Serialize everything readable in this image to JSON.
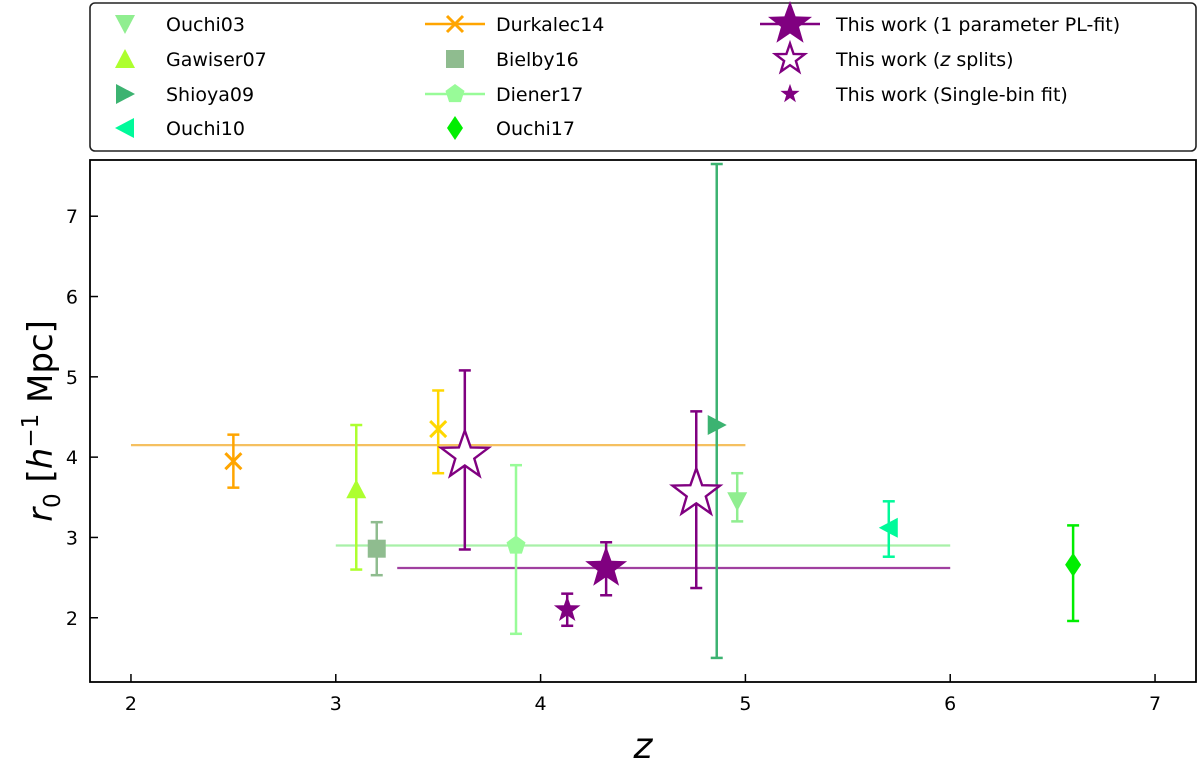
{
  "chart_data": {
    "type": "scatter",
    "title": "",
    "xlabel": "z",
    "ylabel_parts": {
      "r": "r",
      "sub": "0",
      "open": " [",
      "h": "h",
      "sup": "−1",
      "mpc": " Mpc]"
    },
    "xlim": [
      1.8,
      7.2
    ],
    "ylim": [
      1.2,
      7.7
    ],
    "x_ticks": [
      2,
      3,
      4,
      5,
      6,
      7
    ],
    "y_ticks": [
      2,
      3,
      4,
      5,
      6,
      7
    ],
    "legend": {
      "position": "top",
      "entries": [
        {
          "key": "ouchi03",
          "label": "Ouchi03"
        },
        {
          "key": "gawiser07",
          "label": "Gawiser07"
        },
        {
          "key": "shioya09",
          "label": "Shioya09"
        },
        {
          "key": "ouchi10",
          "label": "Ouchi10"
        },
        {
          "key": "durkalec14",
          "label": "Durkalec14"
        },
        {
          "key": "bielby16",
          "label": "Bielby16"
        },
        {
          "key": "diener17",
          "label": "Diener17"
        },
        {
          "key": "ouchi17",
          "label": "Ouchi17"
        },
        {
          "key": "pl_fit",
          "label_pre": "This work (1 parameter PL-fit)",
          "label_z": "",
          "label_post": ""
        },
        {
          "key": "z_splits",
          "label_pre": "This work (",
          "label_z": "z",
          "label_post": " splits)"
        },
        {
          "key": "single_bin",
          "label_pre": "This work (Single-bin fit)",
          "label_z": "",
          "label_post": ""
        }
      ]
    },
    "series": [
      {
        "key": "ouchi03",
        "name": "Ouchi03",
        "marker": "triangle-down",
        "color": "#90ee90",
        "points": [
          {
            "x": 4.96,
            "y": 3.45,
            "ylo": 3.2,
            "yhi": 3.8
          }
        ]
      },
      {
        "key": "gawiser07",
        "name": "Gawiser07",
        "marker": "triangle-up",
        "color": "#adff2f",
        "points": [
          {
            "x": 3.1,
            "y": 3.6,
            "ylo": 2.6,
            "yhi": 4.4
          }
        ]
      },
      {
        "key": "shioya09",
        "name": "Shioya09",
        "marker": "triangle-right",
        "color": "#3cb371",
        "points": [
          {
            "x": 4.86,
            "y": 4.4,
            "ylo": 1.5,
            "yhi": 7.65
          }
        ]
      },
      {
        "key": "ouchi10",
        "name": "Ouchi10",
        "marker": "triangle-left",
        "color": "#00fa9a",
        "points": [
          {
            "x": 5.7,
            "y": 3.12,
            "ylo": 2.76,
            "yhi": 3.45
          }
        ]
      },
      {
        "key": "durkalec14",
        "name": "Durkalec14",
        "marker": "x",
        "color": "#ffa500",
        "points": [
          {
            "x": 2.5,
            "y": 3.95,
            "ylo": 3.62,
            "yhi": 4.28
          },
          {
            "x": 3.5,
            "y": 4.35,
            "ylo": 3.8,
            "yhi": 4.83,
            "color": "#ffd700"
          }
        ],
        "hline": {
          "y": 4.15,
          "x0": 2.0,
          "x1": 5.0,
          "color": "#f5c060"
        }
      },
      {
        "key": "bielby16",
        "name": "Bielby16",
        "marker": "square",
        "color": "#8fbc8f",
        "points": [
          {
            "x": 3.2,
            "y": 2.86,
            "ylo": 2.53,
            "yhi": 3.19
          }
        ]
      },
      {
        "key": "diener17",
        "name": "Diener17",
        "marker": "pentagon",
        "color": "#98fb98",
        "points": [
          {
            "x": 3.88,
            "y": 2.9,
            "ylo": 1.8,
            "yhi": 3.9
          }
        ],
        "hline": {
          "y": 2.9,
          "x0": 3.0,
          "x1": 6.0,
          "color": "#a8f0a8"
        }
      },
      {
        "key": "ouchi17",
        "name": "Ouchi17",
        "marker": "diamond",
        "color": "#00ee00",
        "points": [
          {
            "x": 6.6,
            "y": 2.66,
            "ylo": 1.96,
            "yhi": 3.15
          }
        ]
      },
      {
        "key": "pl_fit",
        "name": "This work (1 parameter PL-fit)",
        "marker": "star-big",
        "color": "#800080",
        "points": [
          {
            "x": 4.32,
            "y": 2.62,
            "ylo": 2.28,
            "yhi": 2.94
          }
        ],
        "hline": {
          "y": 2.62,
          "x0": 3.3,
          "x1": 6.0,
          "color": "#a040a0"
        }
      },
      {
        "key": "z_splits",
        "name": "This work (z splits)",
        "marker": "star-open",
        "color": "#800080",
        "points": [
          {
            "x": 3.63,
            "y": 4.02,
            "ylo": 2.85,
            "yhi": 5.08
          },
          {
            "x": 4.76,
            "y": 3.55,
            "ylo": 2.37,
            "yhi": 4.57
          }
        ]
      },
      {
        "key": "single_bin",
        "name": "This work (Single-bin fit)",
        "marker": "star-small",
        "color": "#800080",
        "points": [
          {
            "x": 4.13,
            "y": 2.1,
            "ylo": 1.9,
            "yhi": 2.3
          }
        ]
      }
    ]
  }
}
